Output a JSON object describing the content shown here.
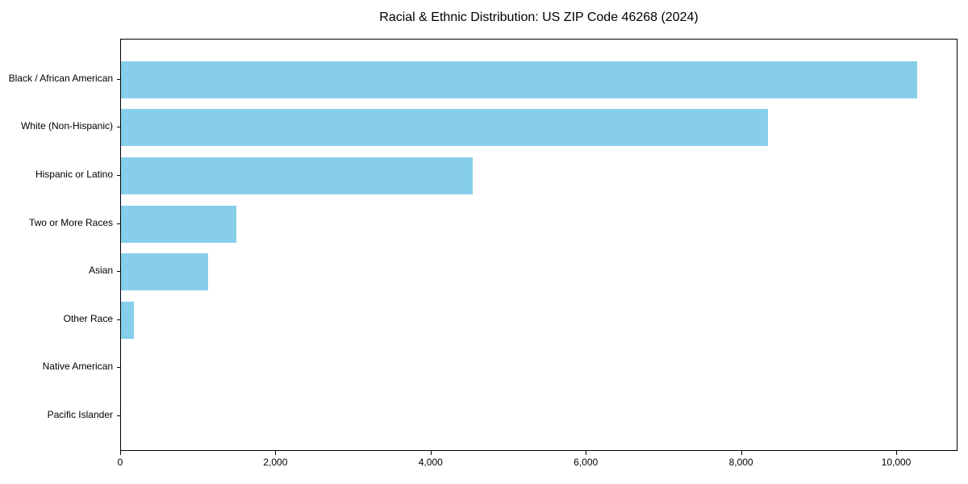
{
  "chart_data": {
    "type": "bar",
    "orientation": "horizontal",
    "title": "Racial & Ethnic Distribution: US ZIP Code 46268 (2024)",
    "categories": [
      "Black / African American",
      "White (Non-Hispanic)",
      "Hispanic or Latino",
      "Two or More Races",
      "Asian",
      "Other Race",
      "Native American",
      "Pacific Islander"
    ],
    "values": [
      10260,
      8340,
      4530,
      1490,
      1120,
      170,
      0,
      0
    ],
    "xlabel": "",
    "ylabel": "",
    "xlim": [
      0,
      10790
    ],
    "xticks": [
      0,
      2000,
      4000,
      6000,
      8000,
      10000
    ],
    "xtick_labels": [
      "0",
      "2,000",
      "4,000",
      "6,000",
      "8,000",
      "10,000"
    ],
    "bar_color": "#87CEEB",
    "plot_border_color": "#000000",
    "text_color": "#000000",
    "background": "#FFFFFF",
    "grid": false,
    "legend": null
  }
}
